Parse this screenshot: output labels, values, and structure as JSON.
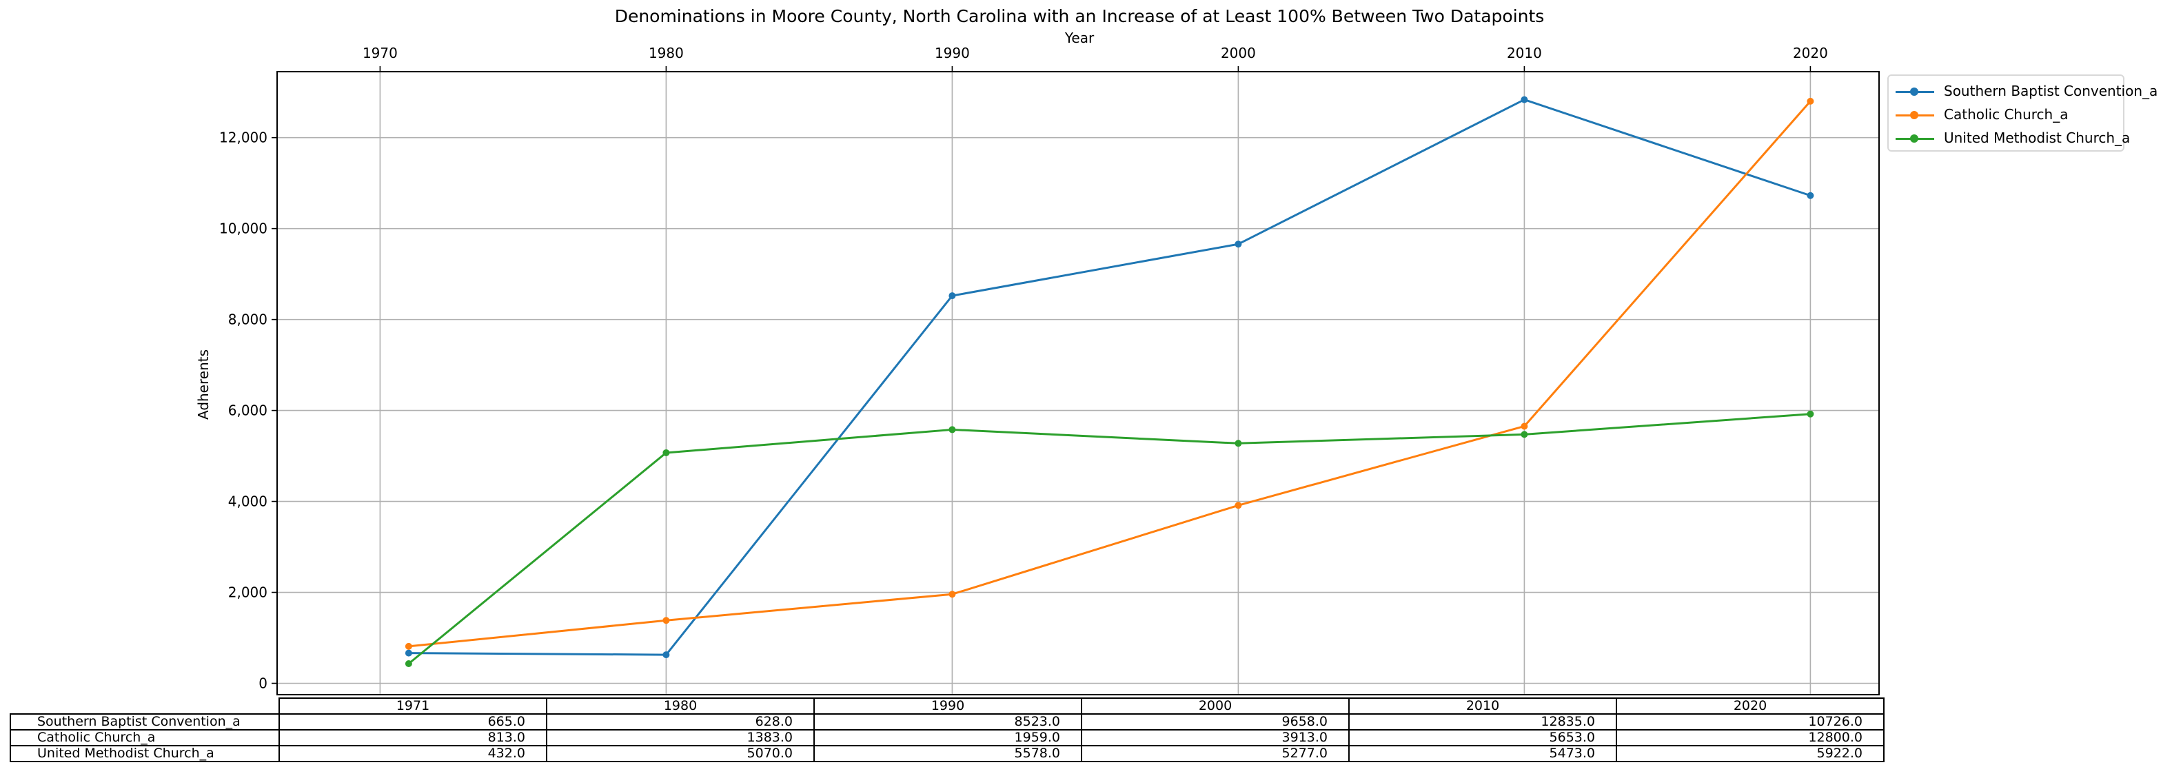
{
  "chart_data": {
    "type": "line",
    "title": "Denominations in Moore County, North Carolina with an Increase of at Least 100% Between Two Datapoints",
    "xlabel": "Year",
    "ylabel": "Adherents",
    "x": [
      1971,
      1980,
      1990,
      2000,
      2010,
      2020
    ],
    "xticks": [
      "1970",
      "1980",
      "1990",
      "2000",
      "2010",
      "2020"
    ],
    "xlim": [
      1966.4,
      2022.4
    ],
    "ylim": [
      -250,
      13450
    ],
    "yticks": [
      "0",
      "2,000",
      "4,000",
      "6,000",
      "8,000",
      "10,000",
      "12,000"
    ],
    "ytick_values": [
      0,
      2000,
      4000,
      6000,
      8000,
      10000,
      12000
    ],
    "grid": true,
    "legend_position": "outside top-right",
    "series": [
      {
        "name": "Southern Baptist Convention_a",
        "color": "#1f77b4",
        "values": [
          665,
          628,
          8523,
          9658,
          12835,
          10726
        ]
      },
      {
        "name": "Catholic Church_a",
        "color": "#ff7f0e",
        "values": [
          813,
          1383,
          1959,
          3913,
          5653,
          12800
        ]
      },
      {
        "name": "United Methodist Church_a",
        "color": "#2ca02c",
        "values": [
          432,
          5070,
          5578,
          5277,
          5473,
          5922
        ]
      }
    ]
  },
  "table": {
    "columns": [
      "1971",
      "1980",
      "1990",
      "2000",
      "2010",
      "2020"
    ],
    "rows": [
      {
        "label": "Southern Baptist Convention_a",
        "cells": [
          "665.0",
          "628.0",
          "8523.0",
          "9658.0",
          "12835.0",
          "10726.0"
        ]
      },
      {
        "label": "Catholic Church_a",
        "cells": [
          "813.0",
          "1383.0",
          "1959.0",
          "3913.0",
          "5653.0",
          "12800.0"
        ]
      },
      {
        "label": "United Methodist Church_a",
        "cells": [
          "432.0",
          "5070.0",
          "5578.0",
          "5277.0",
          "5473.0",
          "5922.0"
        ]
      }
    ]
  }
}
